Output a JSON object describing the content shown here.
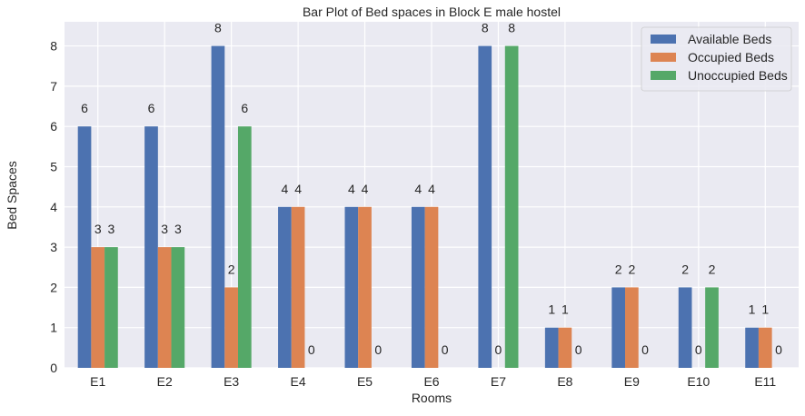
{
  "chart_data": {
    "type": "bar",
    "title": "Bar Plot of Bed spaces in Block E male hostel",
    "xlabel": "Rooms",
    "ylabel": "Bed Spaces",
    "ylim": [
      0,
      8.6
    ],
    "yticks": [
      0,
      1,
      2,
      3,
      4,
      5,
      6,
      7,
      8
    ],
    "grid": true,
    "legend_position": "top-right",
    "categories": [
      "E1",
      "E2",
      "E3",
      "E4",
      "E5",
      "E6",
      "E7",
      "E8",
      "E9",
      "E10",
      "E11"
    ],
    "series": [
      {
        "name": "Available Beds",
        "color": "#4C72B0",
        "values": [
          6,
          6,
          8,
          4,
          4,
          4,
          8,
          1,
          2,
          2,
          1
        ]
      },
      {
        "name": "Occupied Beds",
        "color": "#DD8452",
        "values": [
          3,
          3,
          2,
          4,
          4,
          4,
          0,
          1,
          2,
          0,
          1
        ]
      },
      {
        "name": "Unoccupied Beds",
        "color": "#55A868",
        "values": [
          3,
          3,
          6,
          0,
          0,
          0,
          8,
          0,
          0,
          2,
          0
        ]
      }
    ],
    "data_labels": [
      [
        "6",
        "3",
        "3"
      ],
      [
        "6",
        "3",
        "3"
      ],
      [
        "8",
        "2",
        "6"
      ],
      [
        "4",
        "4",
        "0"
      ],
      [
        "4",
        "4",
        "0"
      ],
      [
        "4",
        "4",
        "0"
      ],
      [
        "8",
        "0",
        "8"
      ],
      [
        "1",
        "1",
        "0"
      ],
      [
        "2",
        "2",
        "0"
      ],
      [
        "2",
        "0",
        "2"
      ],
      [
        "1",
        "1",
        "0"
      ]
    ]
  }
}
